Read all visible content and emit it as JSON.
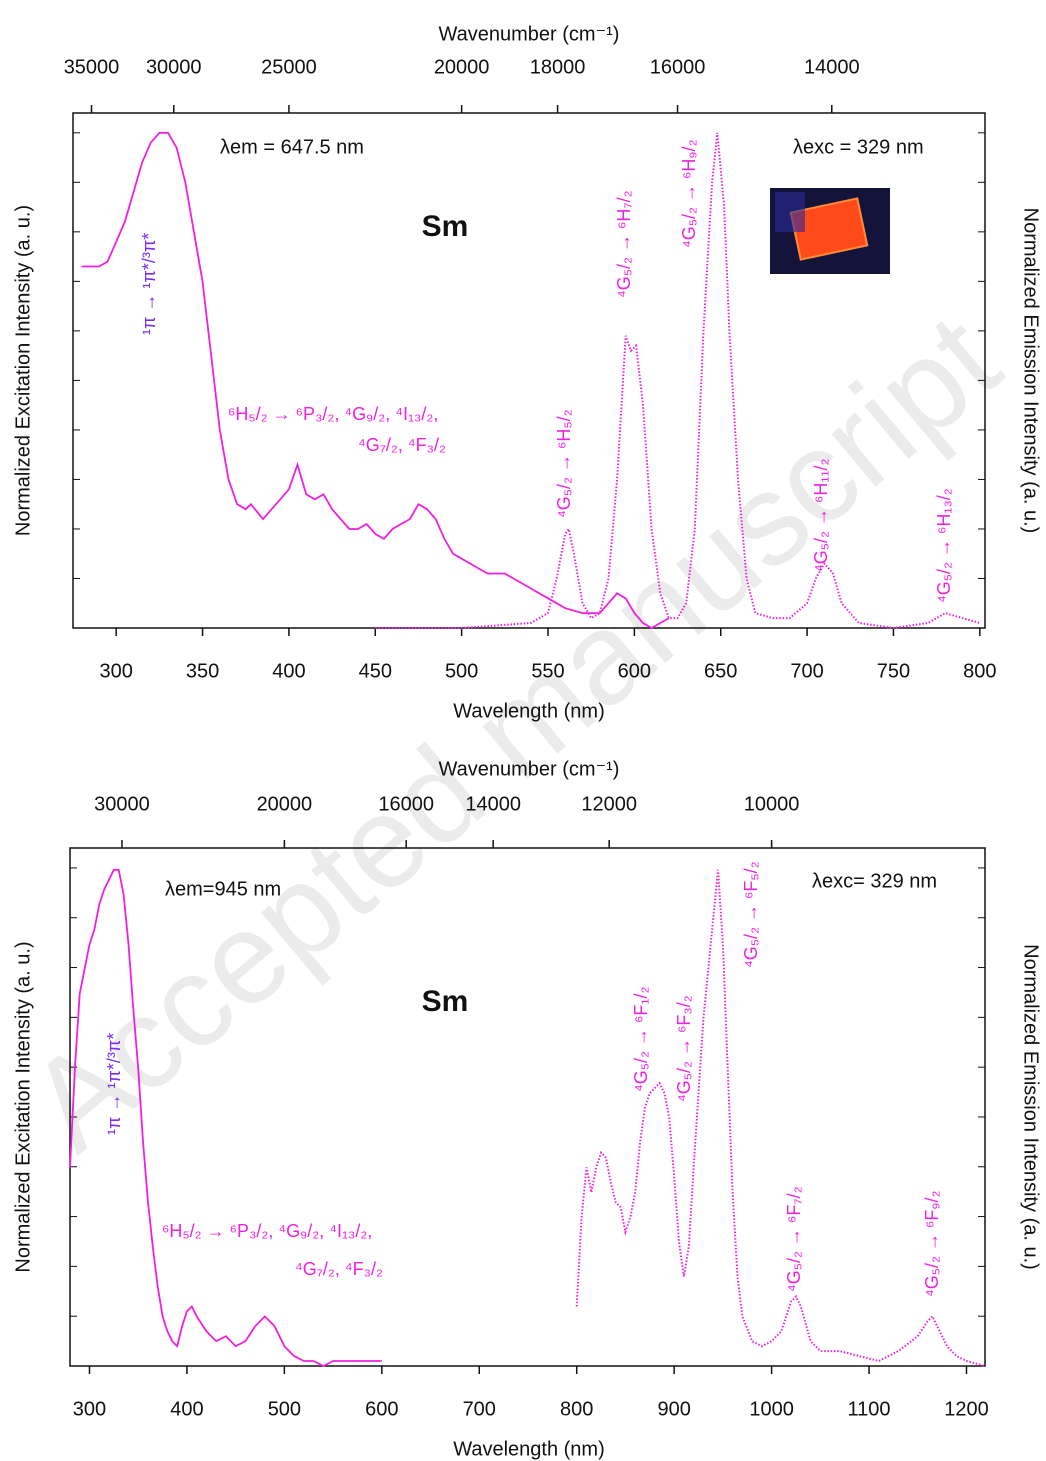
{
  "watermark": "Accepted manuscript",
  "chart_data": [
    {
      "type": "line",
      "x_label": "Wavelength (nm)",
      "x2_label": "Wavenumber (cm⁻¹)",
      "y_label": "Normalized Excitation Intensity (a. u.)",
      "y2_label": "Normalized Emission Intensity (a. u.)",
      "xlim": [
        275,
        803
      ],
      "xticks": [
        300,
        350,
        400,
        450,
        500,
        550,
        600,
        650,
        700,
        750,
        800
      ],
      "x2ticks": [
        35000,
        30000,
        25000,
        20000,
        18000,
        16000,
        14000
      ],
      "ylim": [
        0,
        1.04
      ],
      "y2lim": [
        0,
        1.04
      ],
      "series": [
        {
          "color": "#f020e0",
          "style": "solid",
          "x": [
            280,
            290,
            295,
            300,
            305,
            310,
            315,
            320,
            325,
            330,
            335,
            340,
            345,
            350,
            355,
            360,
            365,
            370,
            375,
            378,
            385,
            390,
            395,
            400,
            405,
            410,
            415,
            420,
            425,
            430,
            435,
            440,
            445,
            450,
            455,
            460,
            465,
            470,
            475,
            480,
            485,
            490,
            495,
            500,
            505,
            510,
            515,
            520,
            525,
            530,
            540,
            550,
            560,
            570,
            580,
            585,
            590,
            595,
            600,
            605,
            610,
            615,
            620
          ],
          "values": [
            0.73,
            0.73,
            0.74,
            0.78,
            0.82,
            0.88,
            0.94,
            0.98,
            1.0,
            1.0,
            0.97,
            0.9,
            0.8,
            0.7,
            0.55,
            0.4,
            0.3,
            0.25,
            0.24,
            0.25,
            0.22,
            0.24,
            0.26,
            0.28,
            0.33,
            0.27,
            0.26,
            0.27,
            0.24,
            0.22,
            0.2,
            0.2,
            0.21,
            0.19,
            0.18,
            0.2,
            0.21,
            0.22,
            0.25,
            0.24,
            0.22,
            0.18,
            0.15,
            0.14,
            0.13,
            0.12,
            0.11,
            0.11,
            0.11,
            0.1,
            0.08,
            0.06,
            0.04,
            0.03,
            0.03,
            0.05,
            0.07,
            0.06,
            0.03,
            0.01,
            0.0,
            0.01,
            0.02
          ]
        },
        {
          "color": "#f020e0",
          "style": "dotted",
          "axis": "y2",
          "x": [
            450,
            500,
            540,
            550,
            555,
            560,
            562,
            565,
            570,
            575,
            580,
            585,
            590,
            595,
            598,
            601,
            605,
            610,
            615,
            620,
            625,
            630,
            635,
            640,
            645,
            648,
            652,
            655,
            660,
            665,
            670,
            680,
            690,
            700,
            705,
            710,
            715,
            720,
            730,
            750,
            770,
            780,
            790,
            800
          ],
          "values": [
            0.0,
            0.0,
            0.01,
            0.03,
            0.1,
            0.19,
            0.2,
            0.15,
            0.05,
            0.02,
            0.03,
            0.1,
            0.3,
            0.59,
            0.56,
            0.57,
            0.45,
            0.2,
            0.07,
            0.02,
            0.02,
            0.05,
            0.2,
            0.6,
            0.9,
            1.0,
            0.85,
            0.6,
            0.3,
            0.1,
            0.03,
            0.02,
            0.02,
            0.05,
            0.1,
            0.13,
            0.11,
            0.05,
            0.01,
            0.0,
            0.01,
            0.03,
            0.02,
            0.01
          ]
        }
      ],
      "annotations": [
        {
          "text": "λem = 647.5 nm",
          "color": "#111"
        },
        {
          "text": "λexc = 329 nm",
          "color": "#111"
        },
        {
          "text": "Sm",
          "color": "#111"
        },
        {
          "text": "¹π → ¹π*/³π*",
          "color": "#7a2cf0"
        },
        {
          "text": "⁶H₅/₂ → ⁶P₃/₂, ⁴G₉/₂, ⁴I₁₃/₂,",
          "color": "#f020e0"
        },
        {
          "text": "⁴G₇/₂, ⁴F₃/₂",
          "color": "#f020e0"
        },
        {
          "text": "⁴G₅/₂ → ⁶H₅/₂",
          "color": "#f020e0"
        },
        {
          "text": "⁴G₅/₂ → ⁶H₇/₂",
          "color": "#f020e0"
        },
        {
          "text": "⁴G₅/₂ → ⁶H₉/₂",
          "color": "#f020e0"
        },
        {
          "text": "⁴G₅/₂ → ⁶H₁₁/₂",
          "color": "#f020e0"
        },
        {
          "text": "⁴G₅/₂ → ⁶H₁₃/₂",
          "color": "#f020e0"
        }
      ]
    },
    {
      "type": "line",
      "x_label": "Wavelength (nm)",
      "x2_label": "Wavenumber (cm⁻¹)",
      "y_label": "Normalized Excitation Intensity (a. u.)",
      "y2_label": "Normalized Emission Intensity (a. u.)",
      "xlim": [
        280,
        1219
      ],
      "xticks": [
        300,
        400,
        500,
        600,
        700,
        800,
        900,
        1000,
        1100,
        1200
      ],
      "x2ticks": [
        30000,
        20000,
        16000,
        14000,
        12000,
        10000
      ],
      "ylim": [
        0,
        1.044
      ],
      "y2lim": [
        0,
        1.044
      ],
      "series": [
        {
          "color": "#f020e0",
          "style": "solid",
          "x": [
            280,
            285,
            290,
            295,
            300,
            305,
            310,
            315,
            320,
            325,
            330,
            335,
            340,
            345,
            350,
            355,
            360,
            365,
            370,
            375,
            380,
            385,
            390,
            395,
            400,
            405,
            410,
            420,
            430,
            440,
            450,
            460,
            470,
            480,
            490,
            500,
            510,
            520,
            530,
            540,
            550,
            560,
            580,
            600
          ],
          "values": [
            0.4,
            0.6,
            0.75,
            0.8,
            0.85,
            0.88,
            0.93,
            0.96,
            0.98,
            1.0,
            1.0,
            0.95,
            0.85,
            0.72,
            0.6,
            0.45,
            0.33,
            0.24,
            0.16,
            0.1,
            0.07,
            0.05,
            0.04,
            0.08,
            0.11,
            0.12,
            0.1,
            0.07,
            0.05,
            0.06,
            0.04,
            0.05,
            0.08,
            0.1,
            0.08,
            0.04,
            0.02,
            0.01,
            0.01,
            0.0,
            0.01,
            0.01,
            0.01,
            0.01
          ]
        },
        {
          "color": "#f020e0",
          "style": "dotted",
          "axis": "y2",
          "x": [
            800,
            805,
            810,
            815,
            820,
            825,
            830,
            835,
            840,
            845,
            850,
            855,
            860,
            865,
            870,
            875,
            880,
            885,
            890,
            895,
            900,
            905,
            910,
            915,
            920,
            925,
            930,
            935,
            940,
            945,
            950,
            955,
            960,
            965,
            970,
            980,
            990,
            1000,
            1010,
            1020,
            1025,
            1030,
            1040,
            1050,
            1070,
            1090,
            1110,
            1130,
            1150,
            1160,
            1165,
            1170,
            1180,
            1190,
            1200,
            1219
          ],
          "values": [
            0.12,
            0.3,
            0.4,
            0.35,
            0.4,
            0.43,
            0.42,
            0.37,
            0.33,
            0.32,
            0.27,
            0.3,
            0.35,
            0.45,
            0.52,
            0.55,
            0.56,
            0.57,
            0.55,
            0.5,
            0.38,
            0.25,
            0.18,
            0.24,
            0.4,
            0.55,
            0.7,
            0.8,
            0.9,
            1.0,
            0.85,
            0.6,
            0.35,
            0.18,
            0.1,
            0.05,
            0.04,
            0.05,
            0.07,
            0.13,
            0.14,
            0.12,
            0.05,
            0.03,
            0.03,
            0.02,
            0.01,
            0.03,
            0.06,
            0.09,
            0.1,
            0.08,
            0.04,
            0.02,
            0.01,
            0.0
          ]
        }
      ],
      "annotations": [
        {
          "text": "λem=945 nm",
          "color": "#111"
        },
        {
          "text": "λexc= 329 nm",
          "color": "#111"
        },
        {
          "text": "Sm",
          "color": "#111"
        },
        {
          "text": "¹π → ¹π*/³π*",
          "color": "#7a2cf0"
        },
        {
          "text": "⁶H₅/₂ → ⁶P₃/₂, ⁴G₉/₂, ⁴I₁₃/₂,",
          "color": "#f020e0"
        },
        {
          "text": "⁴G₇/₂, ⁴F₃/₂",
          "color": "#f020e0"
        },
        {
          "text": "⁴G₅/₂ → ⁶F₁/₂",
          "color": "#f020e0"
        },
        {
          "text": "⁴G₅/₂ → ⁶F₃/₂",
          "color": "#f020e0"
        },
        {
          "text": "⁴G₅/₂ → ⁶F₅/₂",
          "color": "#f020e0"
        },
        {
          "text": "⁴G₅/₂ → ⁶F₇/₂",
          "color": "#f020e0"
        },
        {
          "text": "⁴G₅/₂ → ⁶F₉/₂",
          "color": "#f020e0"
        }
      ]
    }
  ]
}
